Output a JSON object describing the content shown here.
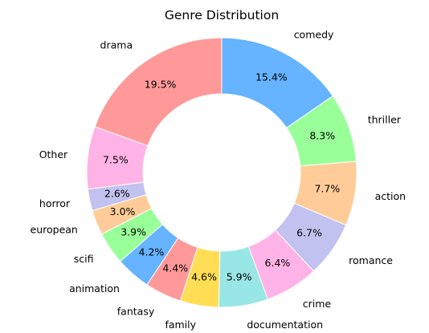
{
  "chart_data": {
    "type": "pie",
    "style": "donut",
    "title": "Genre Distribution",
    "direction": "counterclockwise",
    "start": "top",
    "categories": [
      "drama",
      "Other",
      "horror",
      "european",
      "scifi",
      "animation",
      "fantasy",
      "family",
      "documentation",
      "crime",
      "romance",
      "action",
      "thriller",
      "comedy"
    ],
    "values": [
      19.5,
      7.5,
      2.6,
      3.0,
      3.9,
      4.2,
      4.4,
      4.6,
      5.9,
      6.4,
      6.7,
      7.7,
      8.3,
      15.4
    ],
    "value_labels": [
      "19.5%",
      "7.5%",
      "2.6%",
      "3.0%",
      "3.9%",
      "4.2%",
      "4.4%",
      "4.6%",
      "5.9%",
      "6.4%",
      "6.7%",
      "7.7%",
      "8.3%",
      "15.4%"
    ],
    "colors": [
      "#ff9999",
      "#ffb3e6",
      "#c2c2f0",
      "#ffcc99",
      "#99ff99",
      "#66b3ff",
      "#ff9999",
      "#ffdd55",
      "#99e6e6",
      "#ffb3e6",
      "#c2c2f0",
      "#ffcc99",
      "#99ff99",
      "#66b3ff"
    ],
    "edge_color": "#ffffff"
  }
}
